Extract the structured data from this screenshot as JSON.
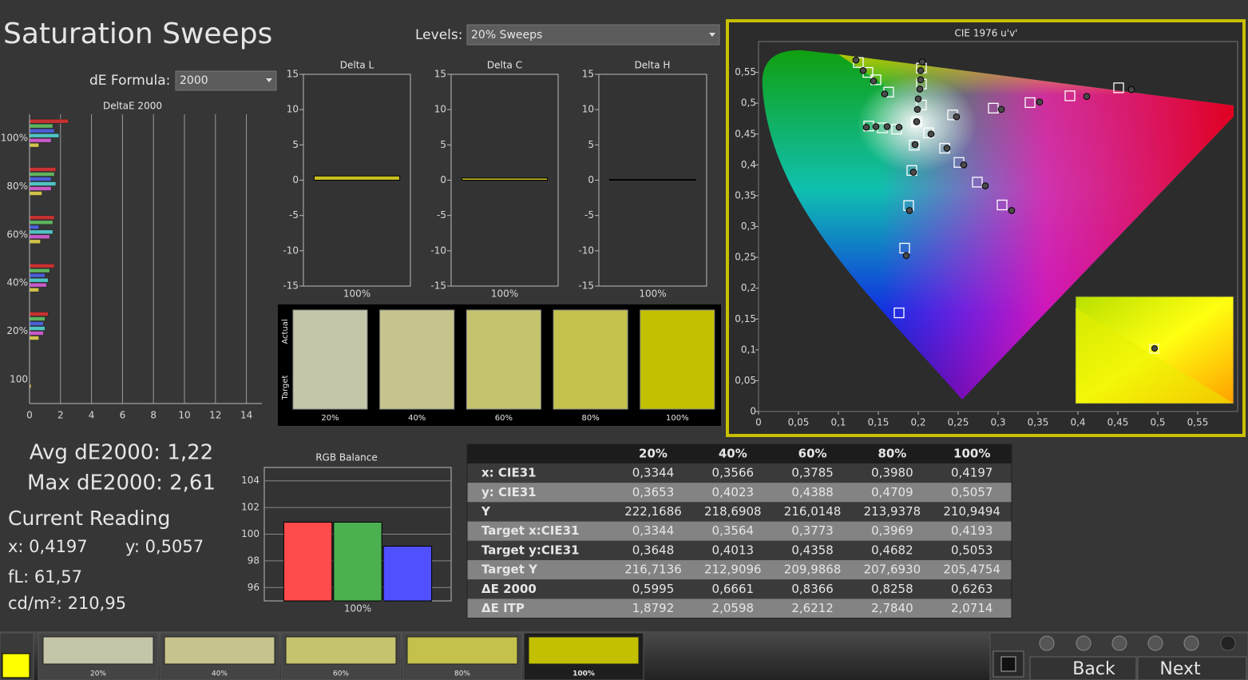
{
  "header": {
    "title": "Saturation Sweeps",
    "levels_label": "Levels:",
    "levels_value": "20% Sweeps",
    "formula_label": "dE Formula:",
    "formula_value": "2000"
  },
  "stats": {
    "avg": "Avg dE2000: 1,22",
    "max": "Max dE2000: 2,61",
    "current_title": "Current Reading",
    "x": "x: 0,4197",
    "y": "y: 0,5057",
    "fl": "fL: 61,57",
    "cdm2": "cd/m²: 210,95"
  },
  "swatches": {
    "actual_label": "Actual",
    "target_label": "Target",
    "items": [
      {
        "label": "20%",
        "color": "#c5c6a9"
      },
      {
        "label": "40%",
        "color": "#c6c48c"
      },
      {
        "label": "60%",
        "color": "#c5c36e"
      },
      {
        "label": "80%",
        "color": "#c4c24c"
      },
      {
        "label": "100%",
        "color": "#c2c000"
      }
    ]
  },
  "chart_data": [
    {
      "type": "bar",
      "orientation": "horizontal",
      "title": "DeltaE 2000",
      "categories": [
        "100%",
        "80%",
        "60%",
        "40%",
        "20%",
        "100"
      ],
      "series": [
        {
          "color": "#c83232",
          "values": [
            2.5,
            1.7,
            1.6,
            1.6,
            1.2,
            null
          ]
        },
        {
          "color": "#5fb35f",
          "values": [
            1.5,
            1.6,
            1.5,
            1.3,
            1.0,
            null
          ]
        },
        {
          "color": "#4b5fd6",
          "values": [
            1.6,
            1.4,
            0.6,
            1.0,
            0.9,
            null
          ]
        },
        {
          "color": "#4fc3c3",
          "values": [
            1.9,
            1.7,
            1.5,
            1.2,
            1.0,
            null
          ]
        },
        {
          "color": "#c85ac8",
          "values": [
            1.4,
            1.4,
            1.3,
            1.1,
            0.9,
            null
          ]
        },
        {
          "color": "#cfc24a",
          "values": [
            0.6,
            0.8,
            0.7,
            0.6,
            0.6,
            0.1
          ]
        }
      ],
      "xlim": [
        0,
        15
      ],
      "xticks": [
        0,
        2,
        4,
        6,
        8,
        10,
        12,
        14
      ],
      "grid": true
    },
    {
      "type": "bar",
      "title": "Delta L",
      "categories": [
        "100%"
      ],
      "values": [
        0.6
      ],
      "color": "#c8c020",
      "ylim": [
        -15,
        15
      ],
      "yticks": [
        -15,
        -10,
        -5,
        0,
        5,
        10,
        15
      ],
      "grid": false
    },
    {
      "type": "bar",
      "title": "Delta C",
      "categories": [
        "100%"
      ],
      "values": [
        0.3
      ],
      "color": "#c8c020",
      "ylim": [
        -15,
        15
      ],
      "yticks": [
        -15,
        -10,
        -5,
        0,
        5,
        10,
        15
      ],
      "grid": false
    },
    {
      "type": "bar",
      "title": "Delta H",
      "categories": [
        "100%"
      ],
      "values": [
        0.1
      ],
      "color": "#111111",
      "ylim": [
        -15,
        15
      ],
      "yticks": [
        -15,
        -10,
        -5,
        0,
        5,
        10,
        15
      ],
      "grid": false
    },
    {
      "type": "bar",
      "title": "RGB Balance",
      "categories": [
        "100%"
      ],
      "series": [
        {
          "color": "#ff4b4b",
          "values": [
            100.9
          ]
        },
        {
          "color": "#4caf50",
          "values": [
            100.9
          ]
        },
        {
          "color": "#5050ff",
          "values": [
            99.1
          ]
        }
      ],
      "ylim": [
        95,
        105
      ],
      "yticks": [
        96,
        98,
        100,
        102,
        104
      ],
      "grid": true
    },
    {
      "type": "scatter",
      "title": "CIE 1976 u'v'",
      "xlim": [
        0,
        0.6
      ],
      "ylim": [
        0,
        0.6
      ],
      "xticks": [
        0,
        {
          "value": 0.05,
          "label": "0,05"
        },
        {
          "value": 0.1,
          "label": "0,1"
        },
        {
          "value": 0.15,
          "label": "0,15"
        },
        {
          "value": 0.2,
          "label": "0,2"
        },
        {
          "value": 0.25,
          "label": "0,25"
        },
        {
          "value": 0.3,
          "label": "0,3"
        },
        {
          "value": 0.35,
          "label": "0,35"
        },
        {
          "value": 0.4,
          "label": "0,4"
        },
        {
          "value": 0.45,
          "label": "0,45"
        },
        {
          "value": 0.5,
          "label": "0,5"
        },
        {
          "value": 0.55,
          "label": "0,55"
        }
      ],
      "yticks": [
        0,
        {
          "value": 0.05,
          "label": "0,05"
        },
        {
          "value": 0.1,
          "label": "0,1"
        },
        {
          "value": 0.15,
          "label": "0,15"
        },
        {
          "value": 0.2,
          "label": "0,2"
        },
        {
          "value": 0.25,
          "label": "0,25"
        },
        {
          "value": 0.3,
          "label": "0,3"
        },
        {
          "value": 0.35,
          "label": "0,35"
        },
        {
          "value": 0.4,
          "label": "0,4"
        },
        {
          "value": 0.45,
          "label": "0,45"
        },
        {
          "value": 0.5,
          "label": "0,5"
        },
        {
          "value": 0.55,
          "label": "0,55"
        }
      ],
      "series": [
        {
          "marker": "square",
          "color": "#ffffff",
          "x": [
            0.198,
            0.243,
            0.294,
            0.34,
            0.39,
            0.451,
            0.163,
            0.147,
            0.137,
            0.125,
            0.195,
            0.192,
            0.188,
            0.183,
            0.176,
            0.173,
            0.155,
            0.138,
            0.213,
            0.233,
            0.251,
            0.274,
            0.305,
            0.204,
            0.204,
            0.204
          ],
          "values": [
            0.47,
            0.481,
            0.492,
            0.501,
            0.512,
            0.525,
            0.518,
            0.538,
            0.55,
            0.566,
            0.432,
            0.391,
            0.334,
            0.265,
            0.16,
            0.458,
            0.46,
            0.463,
            0.452,
            0.427,
            0.404,
            0.372,
            0.335,
            0.497,
            0.531,
            0.557
          ]
        },
        {
          "marker": "circle",
          "color": "#4a4a4a",
          "x": [
            0.198,
            0.248,
            0.304,
            0.352,
            0.411,
            0.467,
            0.158,
            0.144,
            0.131,
            0.122,
            0.196,
            0.194,
            0.189,
            0.185,
            0.176,
            0.161,
            0.147,
            0.135,
            0.216,
            0.236,
            0.257,
            0.284,
            0.317,
            0.199,
            0.2,
            0.202,
            0.203,
            0.203,
            0.205
          ],
          "values": [
            0.47,
            0.478,
            0.49,
            0.502,
            0.511,
            0.522,
            0.515,
            0.536,
            0.553,
            0.57,
            0.433,
            0.388,
            0.326,
            0.253,
            0.461,
            0.462,
            0.462,
            0.461,
            0.45,
            0.427,
            0.4,
            0.366,
            0.326,
            0.49,
            0.507,
            0.523,
            0.538,
            0.553,
            0.567
          ]
        }
      ]
    }
  ],
  "table": {
    "columns": [
      "20%",
      "40%",
      "60%",
      "80%",
      "100%"
    ],
    "rows": [
      {
        "label": "x: CIE31",
        "values": [
          "0,3344",
          "0,3566",
          "0,3785",
          "0,3980",
          "0,4197"
        ]
      },
      {
        "label": "y: CIE31",
        "values": [
          "0,3653",
          "0,4023",
          "0,4388",
          "0,4709",
          "0,5057"
        ]
      },
      {
        "label": "Y",
        "values": [
          "222,1686",
          "218,6908",
          "216,0148",
          "213,9378",
          "210,9494"
        ]
      },
      {
        "label": "Target x:CIE31",
        "values": [
          "0,3344",
          "0,3564",
          "0,3773",
          "0,3969",
          "0,4193"
        ]
      },
      {
        "label": "Target y:CIE31",
        "values": [
          "0,3648",
          "0,4013",
          "0,4358",
          "0,4682",
          "0,5053"
        ]
      },
      {
        "label": "Target Y",
        "values": [
          "216,7136",
          "212,9096",
          "209,9868",
          "207,6930",
          "205,4754"
        ]
      },
      {
        "label": "ΔE 2000",
        "values": [
          "0,5995",
          "0,6661",
          "0,8366",
          "0,8258",
          "0,6263"
        ]
      },
      {
        "label": "ΔE ITP",
        "values": [
          "1,8792",
          "2,0598",
          "2,6212",
          "2,7840",
          "2,0714"
        ]
      }
    ]
  },
  "tabs": [
    {
      "label": "20%",
      "color": "#c5c6a9"
    },
    {
      "label": "40%",
      "color": "#c6c48c"
    },
    {
      "label": "60%",
      "color": "#c5c36e"
    },
    {
      "label": "80%",
      "color": "#c4c24c"
    },
    {
      "label": "100%",
      "color": "#c2c000"
    }
  ],
  "controls": {
    "back": "Back",
    "next": "Next"
  }
}
